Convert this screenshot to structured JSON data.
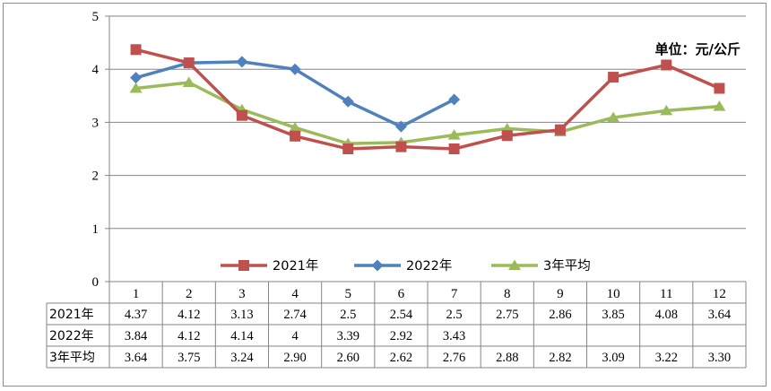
{
  "chart_data": {
    "type": "line",
    "categories": [
      "1",
      "2",
      "3",
      "4",
      "5",
      "6",
      "7",
      "8",
      "9",
      "10",
      "11",
      "12"
    ],
    "ylim": [
      0,
      5
    ],
    "yticks": [
      "0",
      "1",
      "2",
      "3",
      "4",
      "5"
    ],
    "grid": true,
    "unit_label": "单位：元/公斤",
    "legend_position": "bottom",
    "series": [
      {
        "name": "2021年",
        "color": "#c0504d",
        "marker": "square",
        "values": [
          4.37,
          4.12,
          3.13,
          2.74,
          2.5,
          2.54,
          2.5,
          2.75,
          2.86,
          3.85,
          4.08,
          3.64
        ],
        "labels": [
          "4.37",
          "4.12",
          "3.13",
          "2.74",
          "2.5",
          "2.54",
          "2.5",
          "2.75",
          "2.86",
          "3.85",
          "4.08",
          "3.64"
        ]
      },
      {
        "name": "2022年",
        "color": "#4f81bd",
        "marker": "diamond",
        "values": [
          3.84,
          4.12,
          4.14,
          4,
          3.39,
          2.92,
          3.43,
          null,
          null,
          null,
          null,
          null
        ],
        "labels": [
          "3.84",
          "4.12",
          "4.14",
          "4",
          "3.39",
          "2.92",
          "3.43",
          "",
          "",
          "",
          "",
          ""
        ]
      },
      {
        "name": "3年平均",
        "color": "#9bbb59",
        "marker": "triangle",
        "values": [
          3.64,
          3.75,
          3.24,
          2.9,
          2.6,
          2.62,
          2.76,
          2.88,
          2.82,
          3.09,
          3.22,
          3.3
        ],
        "labels": [
          "3.64",
          "3.75",
          "3.24",
          "2.90",
          "2.60",
          "2.62",
          "2.76",
          "2.88",
          "2.82",
          "3.09",
          "3.22",
          "3.30"
        ]
      }
    ]
  }
}
